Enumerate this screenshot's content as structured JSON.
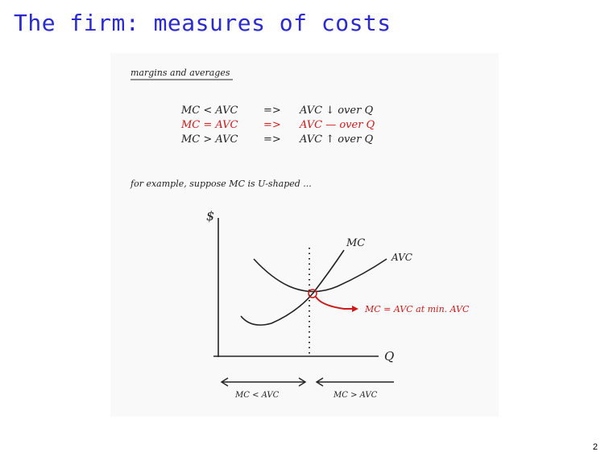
{
  "slide": {
    "title": "The firm: measures of costs",
    "page_number": "2"
  },
  "notes": {
    "heading": "margins and averages",
    "rules": [
      {
        "left": "MC < AVC",
        "arrow": "=>",
        "result": "AVC ↓ over Q",
        "color": "#222222"
      },
      {
        "left": "MC = AVC",
        "arrow": "=>",
        "result": "AVC — over Q",
        "color": "#cc1a1a"
      },
      {
        "left": "MC > AVC",
        "arrow": "=>",
        "result": "AVC ↑ over Q",
        "color": "#222222"
      }
    ],
    "example_text": "for example, suppose MC is U-shaped ...",
    "graph": {
      "y_axis_label": "$",
      "x_axis_label": "Q",
      "mc_label": "MC",
      "avc_label": "AVC",
      "intersection_note": "MC = AVC   at min. AVC",
      "left_region_label": "MC < AVC",
      "right_region_label": "MC > AVC"
    }
  },
  "colors": {
    "title": "#2a2ad0",
    "ink": "#222222",
    "highlight": "#cc1a1a"
  }
}
